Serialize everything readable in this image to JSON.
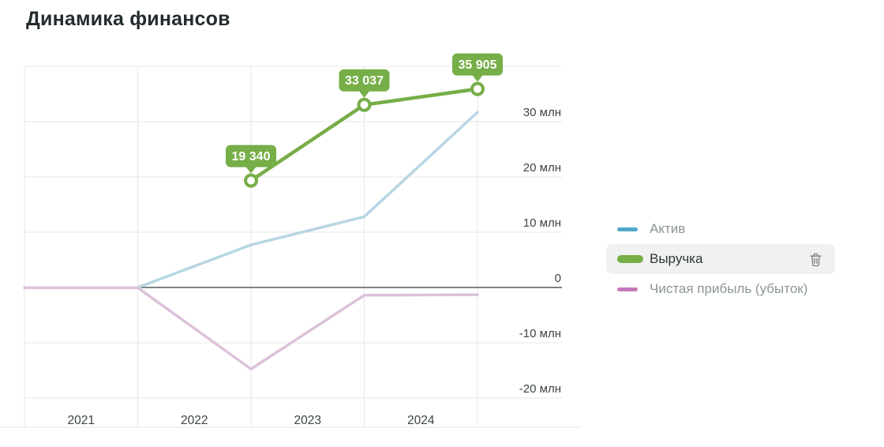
{
  "page": {
    "title": "Динамика финансов"
  },
  "chart_data": {
    "type": "line",
    "title": "Динамика финансов",
    "categories": [
      "2021",
      "2022",
      "2023",
      "2024"
    ],
    "y_unit": "млн",
    "ylim": [
      -25,
      40
    ],
    "grid": "on",
    "legend_position": "right",
    "y_ticks": [
      {
        "value": 30,
        "label": "30 млн"
      },
      {
        "value": 20,
        "label": "20 млн"
      },
      {
        "value": 10,
        "label": "10 млн"
      },
      {
        "value": 0,
        "label": "0"
      },
      {
        "value": -10,
        "label": "-10 млн"
      },
      {
        "value": -20,
        "label": "-20 млн"
      }
    ],
    "grid_line_values": [
      40,
      30,
      20,
      10,
      -10,
      -20
    ],
    "series": [
      {
        "name": "Актив",
        "state": "dimmed",
        "line_color": "#b7d6e2",
        "line_width": 3.5,
        "points": [
          {
            "year": 2021,
            "value_mln": 0
          },
          {
            "year": 2022,
            "value_mln": 7.7
          },
          {
            "year": 2023,
            "value_mln": 12.8
          },
          {
            "year": 2024,
            "value_mln": 31.7
          }
        ]
      },
      {
        "name": "Выручка",
        "state": "highlighted",
        "line_color": "#76ae47",
        "line_width": 4.5,
        "markers": true,
        "points": [
          {
            "year": 2022,
            "value_mln": 19.34,
            "label": "19 340"
          },
          {
            "year": 2023,
            "value_mln": 33.037,
            "label": "33 037"
          },
          {
            "year": 2024,
            "value_mln": 35.905,
            "label": "35 905"
          }
        ]
      },
      {
        "name": "Чистая прибыль (убыток)",
        "state": "dimmed",
        "line_color": "#dbc2da",
        "line_width": 3.5,
        "points": [
          {
            "year": 2020,
            "value_mln": -0.05
          },
          {
            "year": 2021,
            "value_mln": -0.05
          },
          {
            "year": 2022,
            "value_mln": -14.75
          },
          {
            "year": 2023,
            "value_mln": -1.4
          },
          {
            "year": 2024,
            "value_mln": -1.3
          }
        ]
      }
    ]
  },
  "legend": {
    "items": [
      {
        "label": "Актив",
        "swatch_color": "#4fa9cb",
        "selected": false
      },
      {
        "label": "Выручка",
        "swatch_color": "#76ae47",
        "selected": true,
        "action_icon": "trash-icon"
      },
      {
        "label": "Чистая прибыль (убыток)",
        "swatch_color": "#c579ba",
        "selected": false
      }
    ]
  },
  "colors": {
    "grid_line": "#e9e7e7",
    "zero_line": "#54585c",
    "axis_text": "#3c4442",
    "callout_text": "#ffffff",
    "bottom_divider": "#e4e4e4"
  }
}
